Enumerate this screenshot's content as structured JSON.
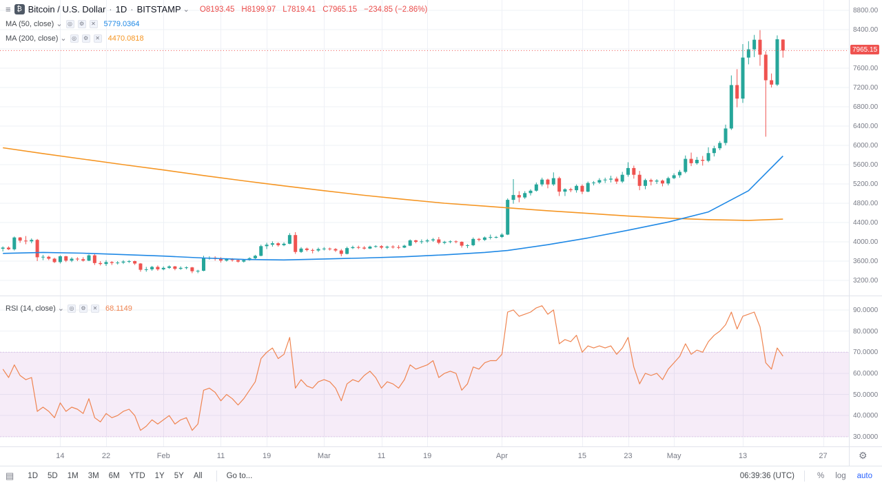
{
  "icons": {
    "menu": "≡",
    "btc": "₿",
    "caret_down": "⌄",
    "eye": "◎",
    "gear": "⚙",
    "close": "✕",
    "panel": "▤"
  },
  "header": {
    "symbol_title": "Bitcoin / U.S. Dollar",
    "dot": "·",
    "interval": "1D",
    "exchange": "BITSTAMP",
    "ohlc": {
      "o_label": "O",
      "o_value": "8193.45",
      "h_label": "H",
      "h_value": "8199.97",
      "l_label": "L",
      "l_value": "7819.41",
      "c_label": "C",
      "c_value": "7965.15",
      "change": "−234.85 (−2.86%)"
    }
  },
  "indicators": {
    "ma50": {
      "label": "MA (50, close)",
      "value": "5779.0364",
      "color": "#1e88e5"
    },
    "ma200": {
      "label": "MA (200, close)",
      "value": "4470.0818",
      "color": "#f59522"
    },
    "rsi": {
      "label": "RSI (14, close)",
      "value": "68.1149",
      "color": "#ef8450"
    }
  },
  "price_axis": {
    "ticks": [
      "8800.00",
      "8400.00",
      "8000.00",
      "7600.00",
      "7200.00",
      "6800.00",
      "6400.00",
      "6000.00",
      "5600.00",
      "5200.00",
      "4800.00",
      "4400.00",
      "4000.00",
      "3600.00",
      "3200.00"
    ],
    "last_price": "7965.15"
  },
  "rsi_axis": {
    "ticks": [
      "90.0000",
      "80.0000",
      "70.0000",
      "60.0000",
      "50.0000",
      "40.0000",
      "30.0000"
    ]
  },
  "time_axis": {
    "ticks": [
      {
        "label": "14",
        "day": 10
      },
      {
        "label": "22",
        "day": 18
      },
      {
        "label": "Feb",
        "day": 28
      },
      {
        "label": "11",
        "day": 38
      },
      {
        "label": "19",
        "day": 46
      },
      {
        "label": "Mar",
        "day": 56
      },
      {
        "label": "11",
        "day": 66
      },
      {
        "label": "19",
        "day": 74
      },
      {
        "label": "Apr",
        "day": 87
      },
      {
        "label": "15",
        "day": 101
      },
      {
        "label": "23",
        "day": 109
      },
      {
        "label": "May",
        "day": 117
      },
      {
        "label": "13",
        "day": 129
      },
      {
        "label": "27",
        "day": 143
      }
    ]
  },
  "toolbar": {
    "ranges": [
      "1D",
      "5D",
      "1M",
      "3M",
      "6M",
      "YTD",
      "1Y",
      "5Y",
      "All"
    ],
    "goto": "Go to...",
    "clock": "06:39:36 (UTC)",
    "percent": "%",
    "log": "log",
    "auto": "auto",
    "auto_color": "#2962ff"
  },
  "chart_data": {
    "type": "candlestick",
    "title": "Bitcoin / U.S. Dollar, 1D, BITSTAMP",
    "start_date": "2019-01-04",
    "x_total_days": 148,
    "ylim": [
      2886,
      9014
    ],
    "price_ticks": [
      3200,
      3600,
      4000,
      4400,
      4800,
      5200,
      5600,
      6000,
      6400,
      6800,
      7200,
      7600,
      8000,
      8400,
      8800
    ],
    "colors": {
      "up": "#26a69a",
      "down": "#ef5350",
      "grid": "#eef0f6"
    },
    "last_price": 7965.15,
    "candles_ohlc": [
      [
        3857,
        3905,
        3800,
        3880
      ],
      [
        3880,
        3905,
        3830,
        3845
      ],
      [
        3845,
        4110,
        3820,
        4090
      ],
      [
        4090,
        4100,
        3980,
        4025
      ],
      [
        4025,
        4120,
        3950,
        4010
      ],
      [
        4010,
        4070,
        3970,
        4040
      ],
      [
        4040,
        4060,
        3600,
        3680
      ],
      [
        3680,
        3730,
        3620,
        3690
      ],
      [
        3690,
        3710,
        3620,
        3650
      ],
      [
        3650,
        3670,
        3560,
        3580
      ],
      [
        3580,
        3720,
        3550,
        3700
      ],
      [
        3700,
        3710,
        3580,
        3610
      ],
      [
        3610,
        3680,
        3580,
        3650
      ],
      [
        3650,
        3680,
        3600,
        3640
      ],
      [
        3640,
        3680,
        3590,
        3610
      ],
      [
        3610,
        3740,
        3600,
        3720
      ],
      [
        3720,
        3750,
        3520,
        3560
      ],
      [
        3560,
        3600,
        3510,
        3540
      ],
      [
        3540,
        3620,
        3500,
        3580
      ],
      [
        3580,
        3600,
        3520,
        3560
      ],
      [
        3560,
        3600,
        3530,
        3570
      ],
      [
        3570,
        3620,
        3540,
        3590
      ],
      [
        3590,
        3620,
        3560,
        3600
      ],
      [
        3600,
        3610,
        3520,
        3550
      ],
      [
        3550,
        3560,
        3380,
        3420
      ],
      [
        3420,
        3480,
        3380,
        3430
      ],
      [
        3430,
        3500,
        3400,
        3480
      ],
      [
        3480,
        3510,
        3400,
        3430
      ],
      [
        3430,
        3490,
        3410,
        3460
      ],
      [
        3460,
        3510,
        3440,
        3490
      ],
      [
        3490,
        3500,
        3410,
        3440
      ],
      [
        3440,
        3490,
        3420,
        3460
      ],
      [
        3460,
        3490,
        3430,
        3470
      ],
      [
        3470,
        3480,
        3350,
        3390
      ],
      [
        3390,
        3420,
        3350,
        3400
      ],
      [
        3400,
        3710,
        3390,
        3660
      ],
      [
        3660,
        3700,
        3630,
        3670
      ],
      [
        3670,
        3700,
        3610,
        3650
      ],
      [
        3650,
        3680,
        3570,
        3610
      ],
      [
        3610,
        3660,
        3590,
        3640
      ],
      [
        3640,
        3660,
        3590,
        3620
      ],
      [
        3620,
        3640,
        3570,
        3590
      ],
      [
        3590,
        3640,
        3570,
        3620
      ],
      [
        3620,
        3680,
        3610,
        3660
      ],
      [
        3660,
        3730,
        3640,
        3710
      ],
      [
        3710,
        3940,
        3700,
        3910
      ],
      [
        3910,
        3980,
        3850,
        3940
      ],
      [
        3940,
        4010,
        3900,
        3970
      ],
      [
        3970,
        3990,
        3900,
        3930
      ],
      [
        3930,
        3990,
        3910,
        3960
      ],
      [
        3960,
        4180,
        3950,
        4140
      ],
      [
        4140,
        4200,
        3750,
        3790
      ],
      [
        3790,
        3890,
        3770,
        3860
      ],
      [
        3860,
        3880,
        3800,
        3830
      ],
      [
        3830,
        3860,
        3760,
        3820
      ],
      [
        3820,
        3880,
        3790,
        3850
      ],
      [
        3850,
        3890,
        3820,
        3860
      ],
      [
        3860,
        3880,
        3820,
        3850
      ],
      [
        3850,
        3870,
        3790,
        3820
      ],
      [
        3820,
        3850,
        3700,
        3750
      ],
      [
        3750,
        3900,
        3740,
        3870
      ],
      [
        3870,
        3920,
        3850,
        3890
      ],
      [
        3890,
        3920,
        3850,
        3880
      ],
      [
        3880,
        3910,
        3840,
        3860
      ],
      [
        3860,
        3920,
        3850,
        3900
      ],
      [
        3900,
        3930,
        3880,
        3910
      ],
      [
        3910,
        3930,
        3850,
        3880
      ],
      [
        3880,
        3920,
        3850,
        3900
      ],
      [
        3900,
        3930,
        3860,
        3890
      ],
      [
        3890,
        3930,
        3850,
        3880
      ],
      [
        3880,
        3940,
        3870,
        3920
      ],
      [
        3920,
        4050,
        3910,
        4030
      ],
      [
        4030,
        4040,
        3970,
        4000
      ],
      [
        4000,
        4050,
        3960,
        4010
      ],
      [
        4010,
        4060,
        3980,
        4030
      ],
      [
        4030,
        4080,
        4000,
        4050
      ],
      [
        4050,
        4100,
        3950,
        3980
      ],
      [
        3980,
        4020,
        3950,
        4000
      ],
      [
        4000,
        4030,
        3970,
        4010
      ],
      [
        4010,
        4030,
        3970,
        4000
      ],
      [
        4000,
        4010,
        3880,
        3920
      ],
      [
        3920,
        3950,
        3870,
        3930
      ],
      [
        3930,
        4090,
        3910,
        4060
      ],
      [
        4060,
        4080,
        4010,
        4040
      ],
      [
        4040,
        4110,
        4020,
        4090
      ],
      [
        4090,
        4150,
        4050,
        4100
      ],
      [
        4100,
        4120,
        4070,
        4100
      ],
      [
        4100,
        4180,
        4080,
        4150
      ],
      [
        4150,
        4900,
        4140,
        4870
      ],
      [
        4870,
        5300,
        4790,
        4970
      ],
      [
        4970,
        5050,
        4820,
        4920
      ],
      [
        4920,
        5050,
        4890,
        5010
      ],
      [
        5010,
        5090,
        4960,
        5060
      ],
      [
        5060,
        5230,
        5040,
        5190
      ],
      [
        5190,
        5330,
        5150,
        5290
      ],
      [
        5290,
        5310,
        5110,
        5190
      ],
      [
        5190,
        5440,
        5160,
        5320
      ],
      [
        5320,
        5350,
        4950,
        5040
      ],
      [
        5040,
        5110,
        4950,
        5090
      ],
      [
        5090,
        5120,
        5030,
        5070
      ],
      [
        5070,
        5190,
        5020,
        5160
      ],
      [
        5160,
        5190,
        4990,
        5040
      ],
      [
        5040,
        5250,
        5030,
        5220
      ],
      [
        5220,
        5260,
        5170,
        5230
      ],
      [
        5230,
        5320,
        5200,
        5280
      ],
      [
        5280,
        5330,
        5220,
        5290
      ],
      [
        5290,
        5370,
        5230,
        5310
      ],
      [
        5310,
        5350,
        5200,
        5250
      ],
      [
        5250,
        5450,
        5220,
        5390
      ],
      [
        5390,
        5650,
        5350,
        5530
      ],
      [
        5530,
        5580,
        5310,
        5390
      ],
      [
        5390,
        5470,
        5070,
        5160
      ],
      [
        5160,
        5310,
        5090,
        5280
      ],
      [
        5280,
        5310,
        5170,
        5250
      ],
      [
        5250,
        5300,
        5200,
        5270
      ],
      [
        5270,
        5290,
        5150,
        5210
      ],
      [
        5210,
        5350,
        5170,
        5320
      ],
      [
        5320,
        5420,
        5300,
        5380
      ],
      [
        5380,
        5490,
        5330,
        5450
      ],
      [
        5450,
        5790,
        5420,
        5720
      ],
      [
        5720,
        5850,
        5570,
        5630
      ],
      [
        5630,
        5760,
        5600,
        5700
      ],
      [
        5700,
        5780,
        5580,
        5680
      ],
      [
        5680,
        5960,
        5650,
        5840
      ],
      [
        5840,
        5990,
        5770,
        5940
      ],
      [
        5940,
        6090,
        5900,
        6050
      ],
      [
        6050,
        6430,
        6000,
        6350
      ],
      [
        6350,
        7450,
        6320,
        7250
      ],
      [
        7250,
        7580,
        6790,
        6970
      ],
      [
        6970,
        8100,
        6880,
        7820
      ],
      [
        7820,
        8160,
        7680,
        7990
      ],
      [
        7990,
        8290,
        7830,
        8190
      ],
      [
        8190,
        8390,
        7650,
        7880
      ],
      [
        7880,
        7950,
        6180,
        7350
      ],
      [
        7350,
        7490,
        7200,
        7260
      ],
      [
        7260,
        8280,
        7230,
        8200
      ],
      [
        8193.45,
        8199.97,
        7819.41,
        7965.15
      ]
    ],
    "ma50": {
      "name": "MA 50 close",
      "points": [
        [
          0,
          3760
        ],
        [
          7,
          3780
        ],
        [
          14,
          3765
        ],
        [
          21,
          3735
        ],
        [
          28,
          3705
        ],
        [
          35,
          3665
        ],
        [
          42,
          3635
        ],
        [
          49,
          3625
        ],
        [
          56,
          3645
        ],
        [
          63,
          3665
        ],
        [
          70,
          3690
        ],
        [
          77,
          3730
        ],
        [
          84,
          3780
        ],
        [
          88,
          3820
        ],
        [
          95,
          3940
        ],
        [
          102,
          4080
        ],
        [
          109,
          4240
        ],
        [
          116,
          4410
        ],
        [
          123,
          4620
        ],
        [
          130,
          5060
        ],
        [
          136,
          5779
        ]
      ]
    },
    "ma200": {
      "name": "MA 200 close",
      "points": [
        [
          0,
          5950
        ],
        [
          7,
          5830
        ],
        [
          14,
          5715
        ],
        [
          21,
          5600
        ],
        [
          28,
          5490
        ],
        [
          35,
          5375
        ],
        [
          42,
          5265
        ],
        [
          49,
          5160
        ],
        [
          56,
          5060
        ],
        [
          63,
          4965
        ],
        [
          70,
          4880
        ],
        [
          77,
          4800
        ],
        [
          84,
          4740
        ],
        [
          88,
          4705
        ],
        [
          95,
          4645
        ],
        [
          102,
          4590
        ],
        [
          109,
          4535
        ],
        [
          116,
          4490
        ],
        [
          123,
          4460
        ],
        [
          130,
          4445
        ],
        [
          136,
          4470
        ]
      ]
    },
    "rsi": {
      "name": "RSI 14 close",
      "ylim": [
        25.4,
        96.5
      ],
      "band": [
        30,
        70
      ],
      "band_fill": "rgba(156,39,176,0.09)",
      "band_line": "#dcc6e8",
      "values": [
        62,
        58,
        64,
        59,
        57,
        58,
        42,
        44,
        42,
        39,
        46,
        42,
        44,
        43,
        41,
        48,
        39,
        37,
        41,
        39,
        40,
        42,
        43,
        40,
        33,
        35,
        38,
        36,
        38,
        40,
        36,
        38,
        39,
        33,
        36,
        52,
        53,
        51,
        47,
        50,
        48,
        45,
        48,
        52,
        56,
        67,
        70,
        72,
        67,
        69,
        77,
        53,
        57,
        54,
        53,
        56,
        57,
        56,
        53,
        47,
        55,
        57,
        56,
        59,
        61,
        58,
        53,
        56,
        55,
        53,
        57,
        64,
        62,
        63,
        64,
        66,
        58,
        60,
        61,
        60,
        52,
        55,
        63,
        62,
        65,
        66,
        66,
        69,
        89,
        90,
        87,
        88,
        89,
        91,
        92,
        88,
        90,
        74,
        76,
        75,
        78,
        70,
        73,
        72,
        73,
        72,
        73,
        69,
        72,
        77,
        63,
        55,
        60,
        59,
        60,
        57,
        62,
        65,
        68,
        74,
        69,
        71,
        70,
        75,
        78,
        80,
        83,
        89,
        81,
        87,
        88,
        89,
        82,
        65,
        62,
        72,
        68.11
      ]
    }
  }
}
